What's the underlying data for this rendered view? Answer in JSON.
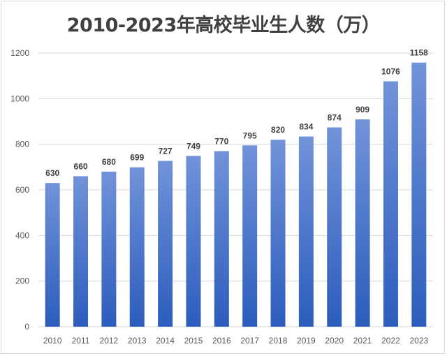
{
  "chart_data": {
    "type": "bar",
    "title": "2010-2023年高校毕业生人数（万）",
    "xlabel": "",
    "ylabel": "",
    "categories": [
      "2010",
      "2011",
      "2012",
      "2013",
      "2014",
      "2015",
      "2016",
      "2017",
      "2018",
      "2019",
      "2020",
      "2021",
      "2022",
      "2023"
    ],
    "values": [
      630,
      660,
      680,
      699,
      727,
      749,
      770,
      795,
      820,
      834,
      874,
      909,
      1076,
      1158
    ],
    "ylim": [
      0,
      1200
    ],
    "yticks": [
      0,
      200,
      400,
      600,
      800,
      1000,
      1200
    ],
    "grid": true,
    "legend": "none",
    "data_labels": true,
    "colors": {
      "bar_top": "#7193d9",
      "bar_bottom": "#2c5cbd",
      "grid": "#d9d9d9"
    }
  }
}
